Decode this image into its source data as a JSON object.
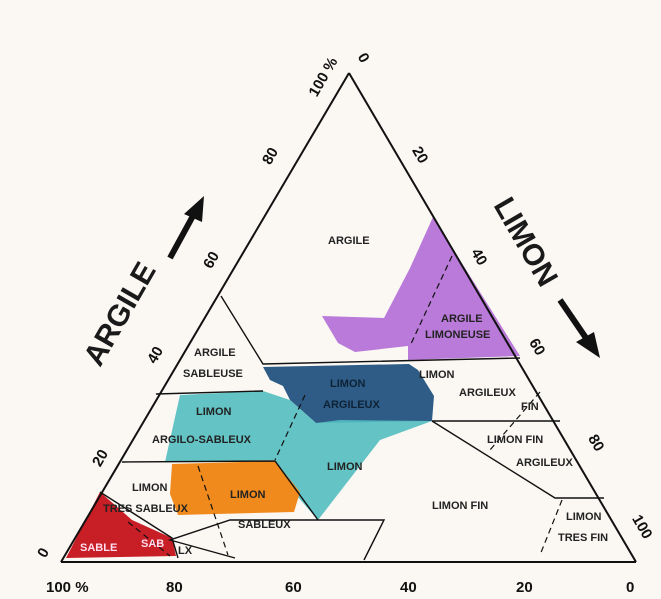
{
  "colors": {
    "paper": "#fbf8f4",
    "purple": "#b26bd6",
    "navy": "#2e5c86",
    "teal": "#52bcc0",
    "orange": "#f08a1c",
    "red": "#c81e25"
  },
  "axes": {
    "left_title": "ARGILE",
    "right_title": "LIMON",
    "left_ticks": [
      "0",
      "20",
      "40",
      "60",
      "80",
      "100 %"
    ],
    "right_ticks": [
      "0",
      "20",
      "40",
      "60",
      "80",
      "100"
    ],
    "bottom_ticks": [
      "100 %",
      "80",
      "60",
      "40",
      "20",
      "0"
    ]
  },
  "zones": [
    {
      "label": "ARGILE"
    },
    {
      "label": "ARGILE"
    },
    {
      "label": "LIMONEUSE"
    },
    {
      "label": "ARGILE"
    },
    {
      "label": "SABLEUSE"
    },
    {
      "label": "LIMON"
    },
    {
      "label": "ARGILEUX"
    },
    {
      "label": "LIMON"
    },
    {
      "label": "ARGILEUX"
    },
    {
      "label": "FIN"
    },
    {
      "label": "LIMON"
    },
    {
      "label": "ARGILO-SABLEUX"
    },
    {
      "label": "LIMON FIN"
    },
    {
      "label": "ARGILEUX"
    },
    {
      "label": "LIMON"
    },
    {
      "label": "LIMON"
    },
    {
      "label": "TRES SABLEUX"
    },
    {
      "label": "LIMON"
    },
    {
      "label": "SABLEUX"
    },
    {
      "label": "LIMON   FIN"
    },
    {
      "label": "LIMON"
    },
    {
      "label": "TRES FIN"
    },
    {
      "label": "SABLE"
    },
    {
      "label": "SAB"
    },
    {
      "label": "LX"
    }
  ]
}
